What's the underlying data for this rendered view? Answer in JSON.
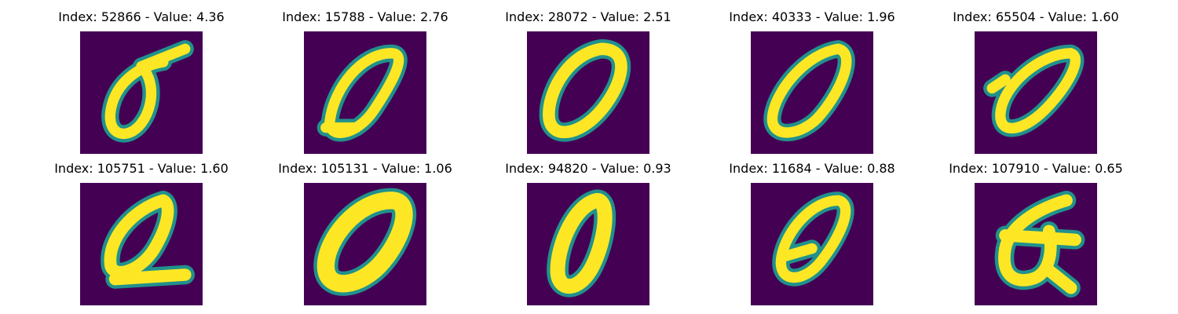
{
  "colors": {
    "background": "#440154",
    "mid": "#21918c",
    "stroke": "#fde725"
  },
  "grid": [
    {
      "title": "Index: 52866 - Value: 4.36",
      "digit_icon": "handwritten-zero-icon"
    },
    {
      "title": "Index: 15788 - Value: 2.76",
      "digit_icon": "handwritten-zero-icon"
    },
    {
      "title": "Index: 28072 - Value: 2.51",
      "digit_icon": "handwritten-zero-icon"
    },
    {
      "title": "Index: 40333 - Value: 1.96",
      "digit_icon": "handwritten-zero-icon"
    },
    {
      "title": "Index: 65504 - Value: 1.60",
      "digit_icon": "handwritten-zero-icon"
    },
    {
      "title": "Index: 105751 - Value: 1.60",
      "digit_icon": "handwritten-zero-icon"
    },
    {
      "title": "Index: 105131 - Value: 1.06",
      "digit_icon": "handwritten-zero-icon"
    },
    {
      "title": "Index: 94820 - Value: 0.93",
      "digit_icon": "handwritten-zero-icon"
    },
    {
      "title": "Index: 11684 - Value: 0.88",
      "digit_icon": "handwritten-zero-icon"
    },
    {
      "title": "Index: 107910 - Value: 0.65",
      "digit_icon": "handwritten-zero-icon"
    }
  ]
}
